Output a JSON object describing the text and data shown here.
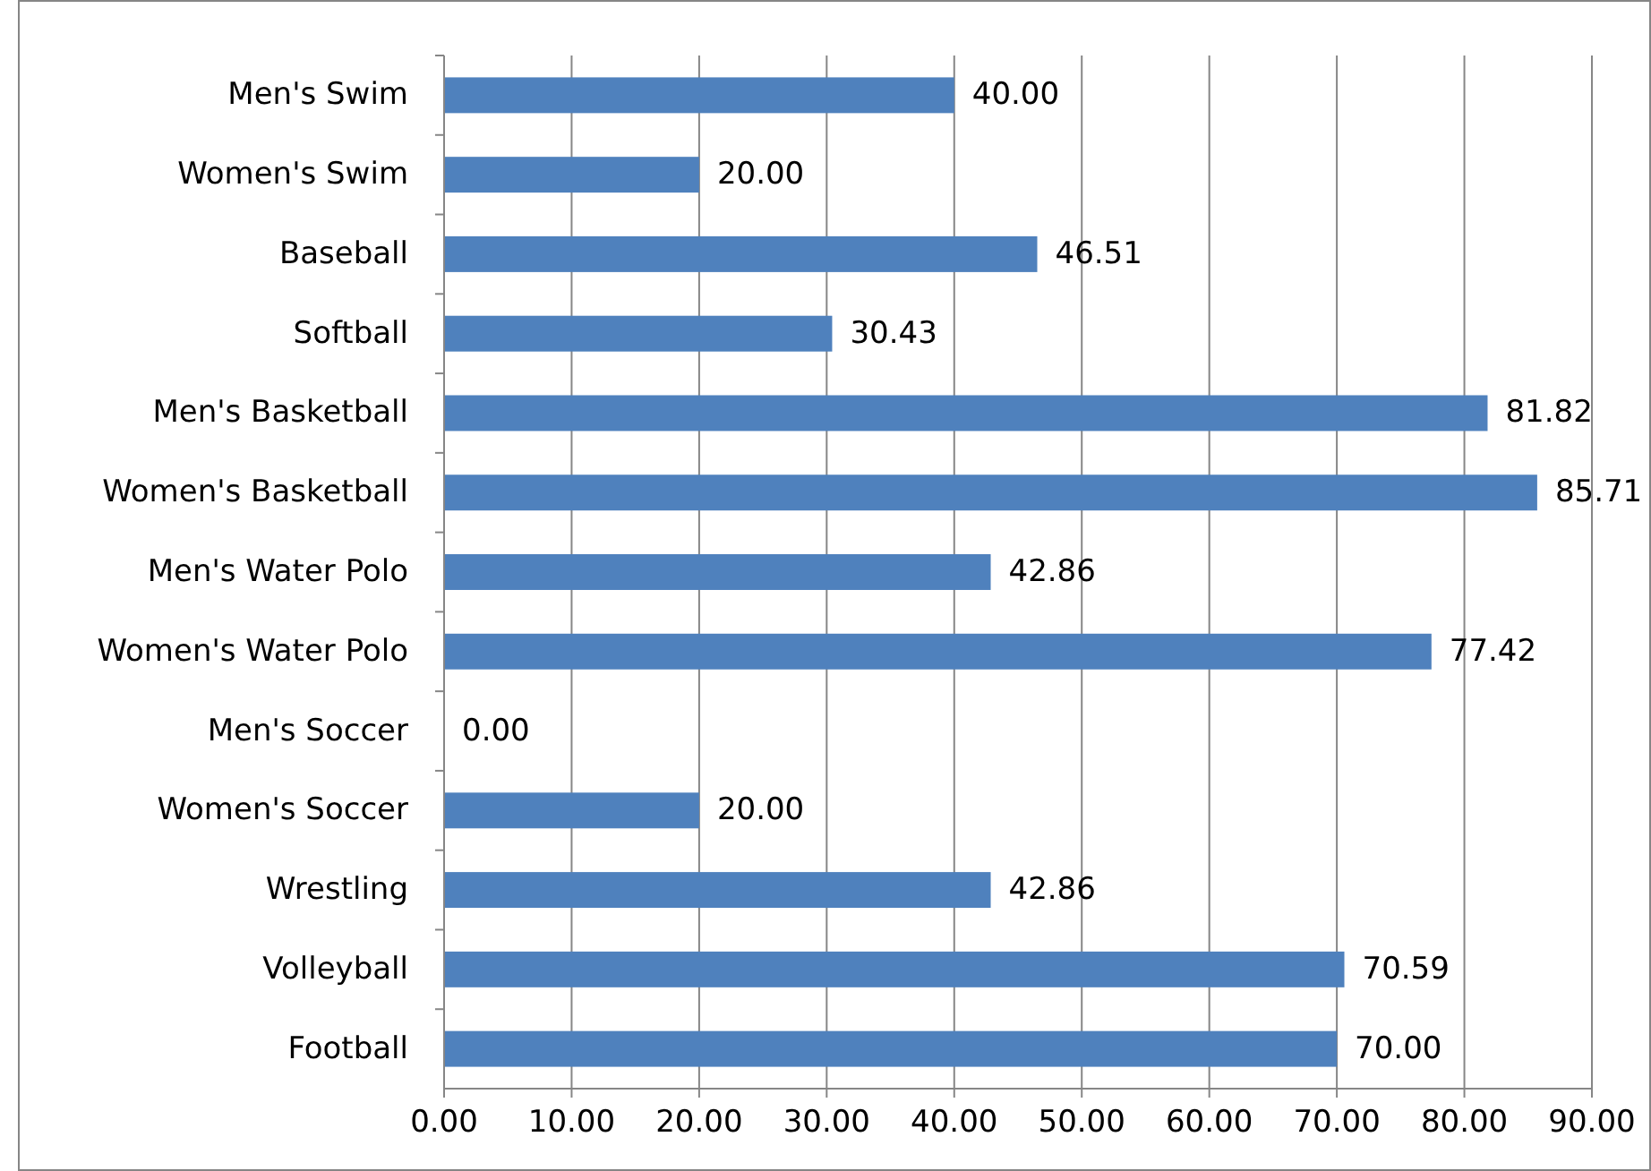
{
  "chart_data": {
    "type": "bar",
    "orientation": "horizontal",
    "categories": [
      "Men's Swim",
      "Women's Swim",
      "Baseball",
      "Softball",
      "Men's Basketball",
      "Women's Basketball",
      "Men's Water Polo",
      "Women's Water Polo",
      "Men's Soccer",
      "Women's Soccer",
      "Wrestling",
      "Volleyball",
      "Football"
    ],
    "values": [
      40,
      20,
      46.51,
      30.43,
      81.82,
      85.71,
      42.86,
      77.42,
      0,
      20,
      42.86,
      70.59,
      70
    ],
    "value_labels": [
      "40.00",
      "20.00",
      "46.51",
      "30.43",
      "81.82",
      "85.71",
      "42.86",
      "77.42",
      "0.00",
      "20.00",
      "42.86",
      "70.59",
      "70.00"
    ],
    "color": "#4f81bd",
    "xlim": [
      0,
      90
    ],
    "xticks": [
      {
        "value": 0,
        "label": "0.00"
      },
      {
        "value": 10,
        "label": "10.00"
      },
      {
        "value": 20,
        "label": "20.00"
      },
      {
        "value": 30,
        "label": "30.00"
      },
      {
        "value": 40,
        "label": "40.00"
      },
      {
        "value": 50,
        "label": "50.00"
      },
      {
        "value": 60,
        "label": "60.00"
      },
      {
        "value": 70,
        "label": "70.00"
      },
      {
        "value": 80,
        "label": "80.00"
      },
      {
        "value": 90,
        "label": "90.00"
      }
    ],
    "grid": "x"
  }
}
